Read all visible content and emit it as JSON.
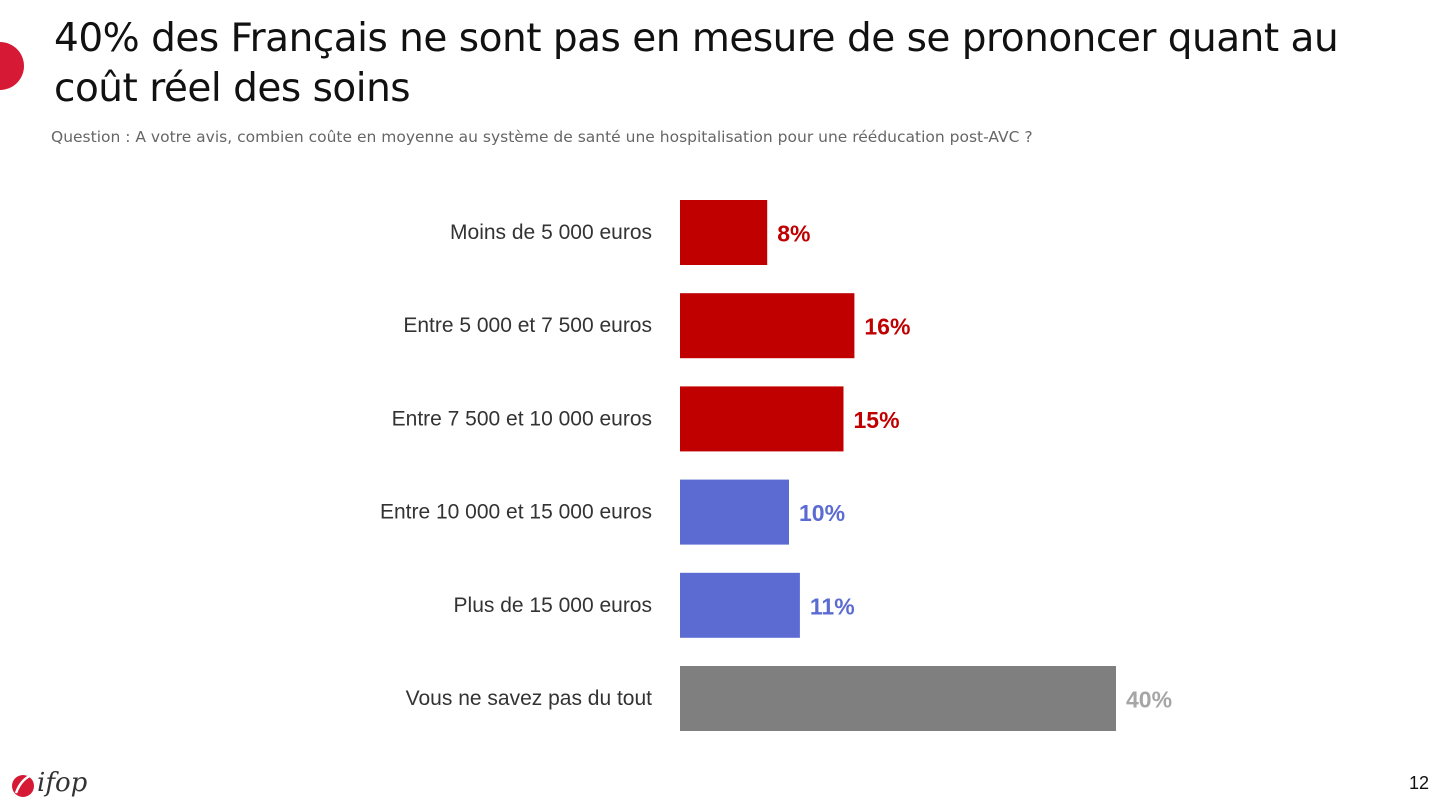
{
  "slide": {
    "title": "40% des Français ne sont pas en mesure de se prononcer quant au coût réel des soins",
    "subtitle": "Question : A votre avis, combien coûte en moyenne au système de santé une hospitalisation pour une rééducation post-AVC ?",
    "page_number": "12",
    "accent_color": "#d61a35"
  },
  "logo": {
    "text": "ifop",
    "icon": "ifop-logo-icon",
    "color": "#d61a35"
  },
  "chart_data": {
    "type": "bar",
    "orientation": "horizontal",
    "categories": [
      "Moins de 5 000 euros",
      "Entre 5 000 et 7 500 euros",
      "Entre 7 500 et 10 000 euros",
      "Entre 10 000 et 15 000 euros",
      "Plus de 15 000 euros",
      "Vous ne savez pas du tout"
    ],
    "values": [
      8,
      16,
      15,
      10,
      11,
      40
    ],
    "value_labels": [
      "8%",
      "16%",
      "15%",
      "10%",
      "11%",
      "40%"
    ],
    "colors": [
      "#c00000",
      "#c00000",
      "#c00000",
      "#5b6bd2",
      "#5b6bd2",
      "#7f7f7f"
    ],
    "label_colors": [
      "#c00000",
      "#c00000",
      "#c00000",
      "#5b6bd2",
      "#5b6bd2",
      "#a6a6a6"
    ],
    "unit": "%",
    "grid": false,
    "legend": "none"
  }
}
